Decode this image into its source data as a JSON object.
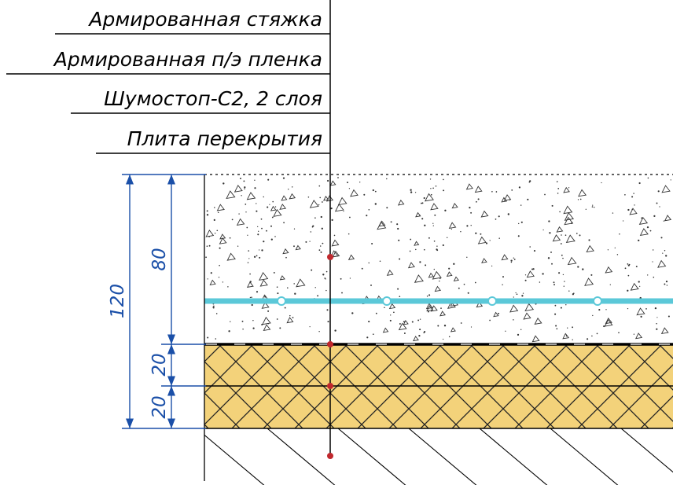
{
  "layers": {
    "label_1": "Армированная стяжка",
    "label_2": "Армированная п/э пленка",
    "label_3": "Шумостоп-С2, 2 слоя",
    "label_4": "Плита перекрытия"
  },
  "dimensions": {
    "total": "120",
    "screed": "80",
    "layer_1": "20",
    "layer_2": "20"
  },
  "colors": {
    "dimension": "#1a4fa8",
    "insulation_fill": "#f3d27a",
    "reinforcement_mesh": "#5bc8d8",
    "leader_markers": "#c0282d"
  }
}
